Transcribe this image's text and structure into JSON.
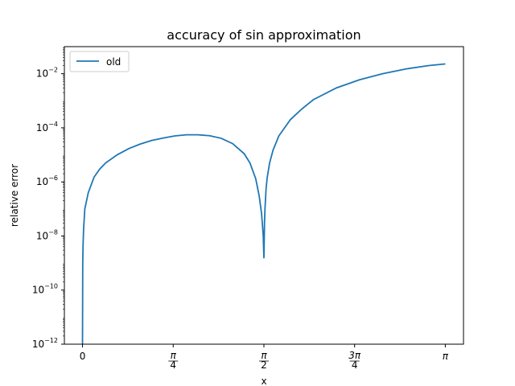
{
  "chart_data": {
    "type": "line",
    "title": "accuracy of sin approximation",
    "xlabel": "x",
    "ylabel": "relative error",
    "yscale": "log",
    "ylim": [
      1e-12,
      0.1
    ],
    "xlim": [
      -0.157,
      3.299
    ],
    "xticks": [
      {
        "value": 0,
        "label": "0"
      },
      {
        "value": 0.785398,
        "label": "π/4"
      },
      {
        "value": 1.570796,
        "label": "π/2"
      },
      {
        "value": 2.356194,
        "label": "3π/4"
      },
      {
        "value": 3.141593,
        "label": "π"
      }
    ],
    "yticks": [
      {
        "value": 1e-12,
        "mantissa": "10",
        "exp": "−12"
      },
      {
        "value": 1e-10,
        "mantissa": "10",
        "exp": "−10"
      },
      {
        "value": 1e-08,
        "mantissa": "10",
        "exp": "−8"
      },
      {
        "value": 1e-06,
        "mantissa": "10",
        "exp": "−6"
      },
      {
        "value": 0.0001,
        "mantissa": "10",
        "exp": "−4"
      },
      {
        "value": 0.01,
        "mantissa": "10",
        "exp": "−2"
      }
    ],
    "legend": {
      "location": "upper-left"
    },
    "grid": false,
    "series": [
      {
        "name": "old",
        "color": "#1f77b4",
        "x": [
          0.0,
          0.002,
          0.005,
          0.01,
          0.02,
          0.05,
          0.1,
          0.15,
          0.2,
          0.3,
          0.4,
          0.5,
          0.6,
          0.7,
          0.8,
          0.9,
          1.0,
          1.1,
          1.2,
          1.3,
          1.4,
          1.45,
          1.5,
          1.53,
          1.55,
          1.56,
          1.565,
          1.5708,
          1.576,
          1.58,
          1.59,
          1.6,
          1.62,
          1.65,
          1.7,
          1.8,
          1.9,
          2.0,
          2.2,
          2.4,
          2.6,
          2.8,
          3.0,
          3.1416
        ],
        "values": [
          1e-12,
          1e-09,
          5e-09,
          2e-08,
          1e-07,
          4e-07,
          1.5e-06,
          3e-06,
          5e-06,
          1e-05,
          1.7e-05,
          2.5e-05,
          3.4e-05,
          4.2e-05,
          5e-05,
          5.5e-05,
          5.5e-05,
          5.1e-05,
          4.1e-05,
          2.6e-05,
          1.1e-05,
          5e-06,
          1.3e-06,
          3e-07,
          7e-08,
          2e-08,
          1e-08,
          1.5e-09,
          3e-08,
          1e-07,
          6e-07,
          1.5e-06,
          5e-06,
          1.5e-05,
          5e-05,
          0.0002,
          0.0005,
          0.0011,
          0.003,
          0.006,
          0.01,
          0.015,
          0.02,
          0.023
        ]
      }
    ]
  }
}
